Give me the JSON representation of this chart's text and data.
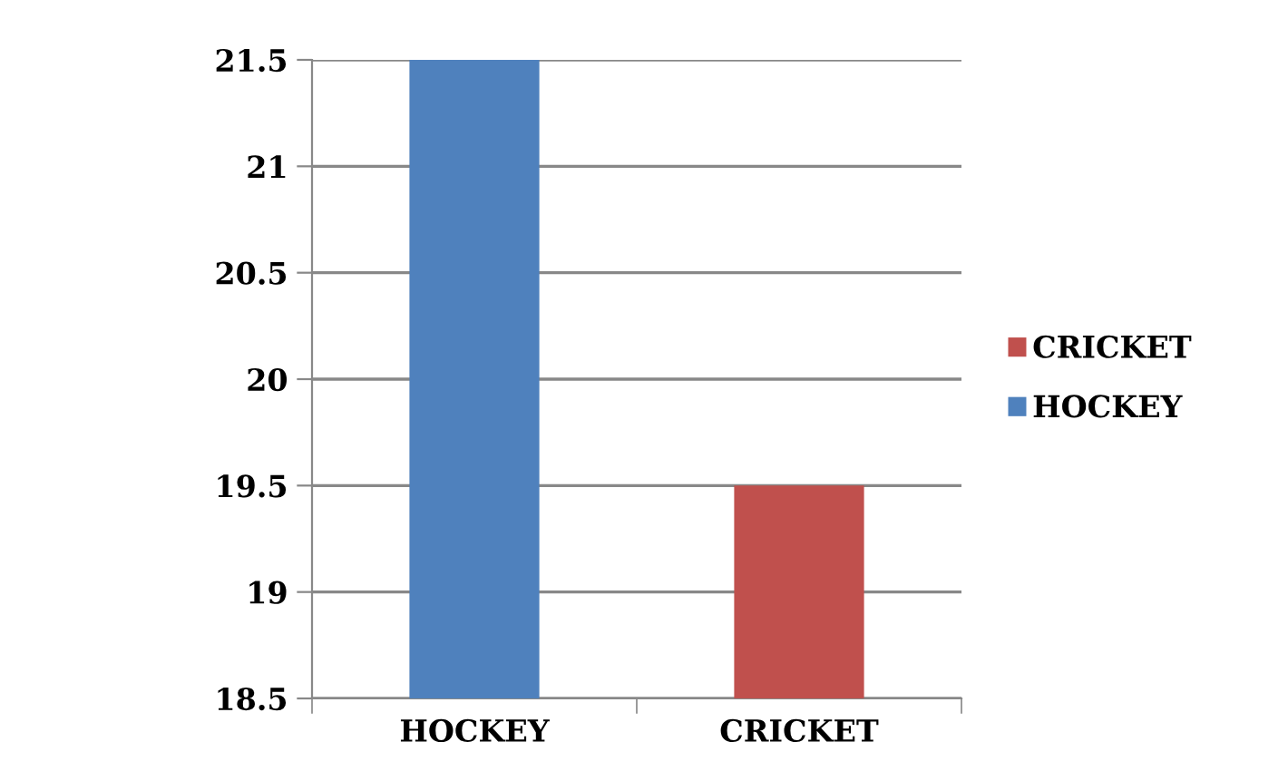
{
  "chart_data": {
    "type": "bar",
    "categories": [
      "HOCKEY",
      "CRICKET"
    ],
    "series": [
      {
        "name": "CRICKET",
        "color": "#c0504d",
        "values": [
          null,
          19.5
        ]
      },
      {
        "name": "HOCKEY",
        "color": "#4f81bd",
        "values": [
          21.5,
          null
        ]
      }
    ],
    "ylim": [
      18.5,
      21.5
    ],
    "yticks": [
      18.5,
      19,
      19.5,
      20,
      20.5,
      21,
      21.5
    ],
    "grid": "y",
    "legend": "right"
  }
}
